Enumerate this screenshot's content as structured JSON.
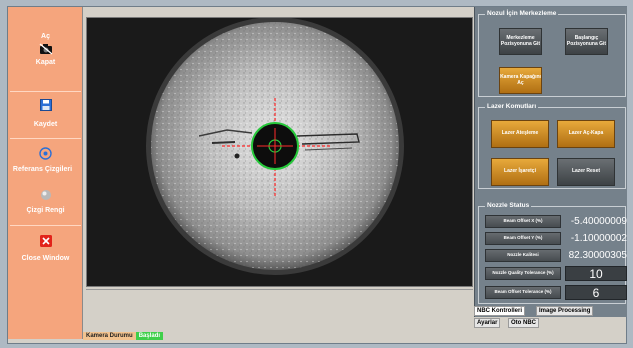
{
  "sidebar": {
    "items": [
      {
        "label_top": "Aç",
        "label_bottom": "Kapat",
        "icon": "camera-off-icon"
      },
      {
        "label": "Kaydet",
        "icon": "save-icon"
      },
      {
        "label": "Referans Çizgileri",
        "icon": "target-icon"
      },
      {
        "label": "Çizgi Rengi",
        "icon": "color-ball-icon"
      },
      {
        "label": "Close Window",
        "icon": "close-icon"
      }
    ]
  },
  "status_bar": {
    "camera_status_label": "Kamera Durumu",
    "state_label": "Başladı"
  },
  "panel": {
    "centering": {
      "title": "Nozul İçin Merkezleme",
      "btn_center": "Merkezleme Pozisyonuna Git",
      "btn_home": "Başlangıç Pozisyonuna Git",
      "btn_camera": "Kamera Kapağını Aç"
    },
    "laser": {
      "title": "Lazer Komutları",
      "btn_fire": "Lazer Ateşleme",
      "btn_toggle": "Lazer Aç-Kapa",
      "btn_pointer": "Lazer İşaretçi",
      "btn_reset": "Lazer Reset"
    },
    "nozzle_status": {
      "title": "Nozzle Status",
      "rows": [
        {
          "label": "Beam Offset X (%)",
          "value": "-5.40000009"
        },
        {
          "label": "Beam Offset Y (%)",
          "value": "-1.10000002"
        },
        {
          "label": "Nozzle Kalitesi",
          "value": "82.30000305"
        },
        {
          "label": "Nozzle Quality Tolerance (%)",
          "value": "10"
        },
        {
          "label": "Beam Offset Tolerance (%)",
          "value": "6"
        }
      ]
    }
  },
  "tabs": {
    "nbc_controls": "NBC Kontrolleri",
    "image_processing": "Image Processing",
    "settings": "Ayarlar",
    "oto_nbc": "Oto NBC"
  },
  "colors": {
    "sidebar": "#f5a57d",
    "panel": "#75818b",
    "accent_orange": "#d8901e",
    "crosshair": "#ff2a2a",
    "nozzle_ring": "#26c83a",
    "status_started": "#3fcf4a"
  }
}
